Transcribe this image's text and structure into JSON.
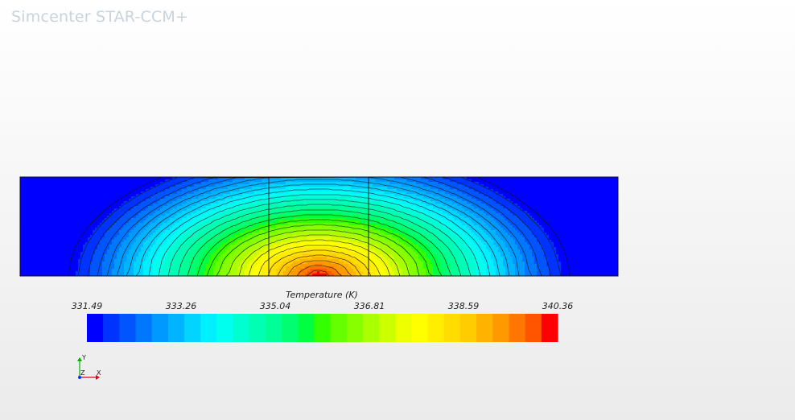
{
  "app": {
    "title": "Simcenter STAR-CCM+"
  },
  "scalar_bar": {
    "title": "Temperature (K)",
    "min": 331.49,
    "max": 340.36,
    "ticks": [
      "331.49",
      "333.26",
      "335.04",
      "336.81",
      "338.59",
      "340.36"
    ],
    "colors": [
      "#0000ff",
      "#0033ff",
      "#0055ff",
      "#0077ff",
      "#0099ff",
      "#00b4ff",
      "#00d4ff",
      "#00f0ff",
      "#00ffee",
      "#00ffd0",
      "#00ffb4",
      "#00ff96",
      "#00ff70",
      "#00ff40",
      "#33ff00",
      "#66ff00",
      "#88ff00",
      "#aaff00",
      "#ccff00",
      "#eeff00",
      "#ffff00",
      "#ffee00",
      "#ffdd00",
      "#ffcc00",
      "#ffb300",
      "#ff9900",
      "#ff7700",
      "#ff5500",
      "#ff0000"
    ]
  },
  "triad": {
    "y_label": "Y",
    "z_label": "Z",
    "x_label": "X",
    "colors": {
      "x": "#e8001c",
      "y": "#00b400",
      "z": "#0033ff"
    }
  }
}
